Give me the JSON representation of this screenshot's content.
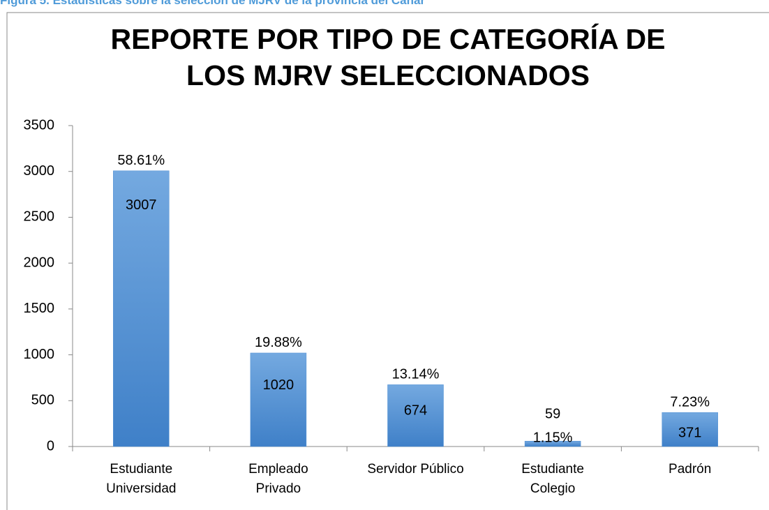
{
  "caption": "Figura 5. Estadísticas sobre la selección de MJRV de la provincia del Cañar",
  "chart_data": {
    "type": "bar",
    "title": "REPORTE POR TIPO DE CATEGORÍA DE\nLOS MJRV SELECCIONADOS",
    "categories": [
      "Estudiante\nUniversidad",
      "Empleado\nPrivado",
      "Servidor Público",
      "Estudiante\nColegio",
      "Padrón"
    ],
    "values": [
      3007,
      1020,
      674,
      59,
      371
    ],
    "percent_labels": [
      "58.61%",
      "19.88%",
      "13.14%",
      "1.15%",
      "7.23%"
    ],
    "color": "#4f8fd3",
    "ylim": [
      0,
      3500
    ],
    "yticks": [
      0,
      500,
      1000,
      1500,
      2000,
      2500,
      3000,
      3500
    ],
    "grid": false
  }
}
